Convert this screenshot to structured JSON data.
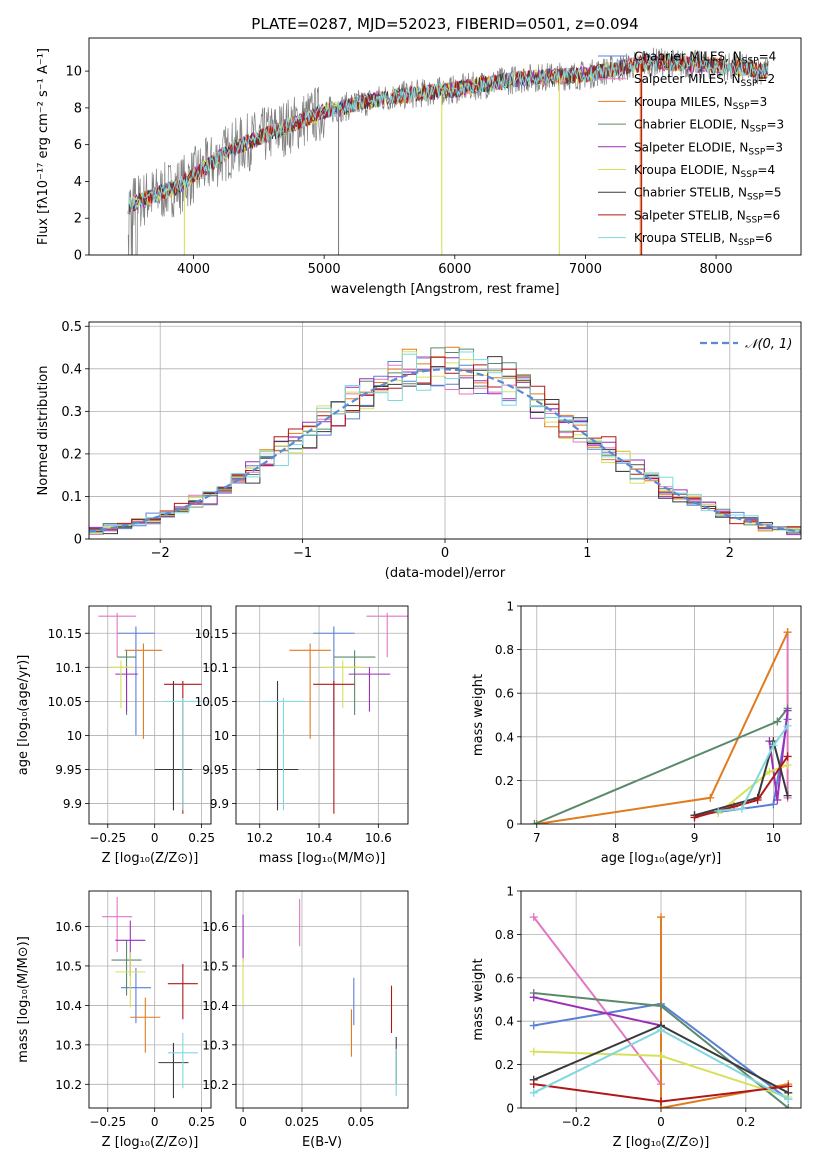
{
  "panels": {
    "spectrum": {
      "title": "PLATE=0287, MJD=52023, FIBERID=0501, z=0.094",
      "xlabel": "wavelength [Angstrom, rest frame]",
      "ylabel": "Flux [fλ10⁻¹⁷ erg cm⁻² s⁻¹ A⁻¹]",
      "xlim": [
        3200,
        8650
      ],
      "ylim": [
        0,
        11.8
      ],
      "xticks": [
        4000,
        5000,
        6000,
        7000,
        8000
      ],
      "yticks": [
        0,
        2,
        4,
        6,
        8,
        10
      ],
      "legend": [
        {
          "name": "Chabrier MILES, N_SSP=4",
          "color": "#5b7fd6"
        },
        {
          "name": "Salpeter MILES, N_SSP=2",
          "color": "#e377c2"
        },
        {
          "name": "Kroupa MILES, N_SSP=3",
          "color": "#e07b20"
        },
        {
          "name": "Chabrier ELODIE, N_SSP=3",
          "color": "#5a8a6a"
        },
        {
          "name": "Salpeter ELODIE, N_SSP=3",
          "color": "#9a2fb8"
        },
        {
          "name": "Kroupa ELODIE, N_SSP=4",
          "color": "#d8e05a"
        },
        {
          "name": "Chabrier STELIB, N_SSP=5",
          "color": "#3a3a3a"
        },
        {
          "name": "Salpeter STELIB, N_SSP=6",
          "color": "#b01818"
        },
        {
          "name": "Kroupa STELIB, N_SSP=6",
          "color": "#7fd8e0"
        }
      ]
    },
    "residuals": {
      "xlabel": "(data-model)/error",
      "ylabel": "Normed distribution",
      "xlim": [
        -2.5,
        2.5
      ],
      "ylim": [
        0,
        0.51
      ],
      "xticks": [
        -2,
        -1,
        0,
        1,
        2
      ],
      "yticks": [
        0.0,
        0.1,
        0.2,
        0.3,
        0.4,
        0.5
      ],
      "legend": "𝒩(0, 1)"
    },
    "age_Z": {
      "xlabel": "Z [log₁₀(Z/Z⊙)]",
      "ylabel": "age  [log₁₀(age/yr)]",
      "xticks": [
        -0.25,
        0.0,
        0.25
      ],
      "yticks": [
        9.9,
        9.95,
        10.0,
        10.05,
        10.1,
        10.15
      ]
    },
    "age_mass": {
      "xlabel": "mass [log₁₀(M/M⊙)]",
      "xticks": [
        10.2,
        10.4,
        10.6
      ],
      "yticks": [
        9.9,
        9.95,
        10.0,
        10.05,
        10.1,
        10.15
      ]
    },
    "weight_age": {
      "xlabel": "age  [log₁₀(age/yr)]",
      "ylabel": "mass weight",
      "xticks": [
        7,
        8,
        9,
        10
      ],
      "yticks": [
        0.0,
        0.2,
        0.4,
        0.6,
        0.8,
        1.0
      ]
    },
    "mass_Z": {
      "xlabel": "Z [log₁₀(Z/Z⊙)]",
      "ylabel": "mass [log₁₀(M/M⊙)]",
      "xticks": [
        -0.25,
        0.0,
        0.25
      ],
      "yticks": [
        10.2,
        10.3,
        10.4,
        10.5,
        10.6
      ]
    },
    "mass_EBV": {
      "xlabel": "E(B-V)",
      "xticks": [
        0.0,
        0.025,
        0.05
      ],
      "yticks": [
        10.2,
        10.3,
        10.4,
        10.5,
        10.6
      ]
    },
    "weight_Z": {
      "xlabel": "Z [log₁₀(Z/Z⊙)]",
      "ylabel": "mass weight",
      "xticks": [
        -0.2,
        0.0,
        0.2
      ],
      "yticks": [
        0.0,
        0.2,
        0.4,
        0.6,
        0.8,
        1.0
      ]
    }
  },
  "chart_data": [
    {
      "type": "line",
      "title": "PLATE=0287, MJD=52023, FIBERID=0501, z=0.094",
      "xlabel": "wavelength [Angstrom, rest frame]",
      "ylabel": "Flux",
      "x_range": [
        3500,
        8400
      ],
      "approx_flux_profile": {
        "x": [
          3500,
          3900,
          4300,
          5000,
          5500,
          6000,
          6500,
          7000,
          7500,
          8000,
          8400
        ],
        "y": [
          2.7,
          3.8,
          5.8,
          7.8,
          8.6,
          9.0,
          9.6,
          9.8,
          10.5,
          10.3,
          10.0
        ]
      },
      "series": [
        "Chabrier MILES, N_SSP=4",
        "Salpeter MILES, N_SSP=2",
        "Kroupa MILES, N_SSP=3",
        "Chabrier ELODIE, N_SSP=3",
        "Salpeter ELODIE, N_SSP=3",
        "Kroupa ELODIE, N_SSP=4",
        "Chabrier STELIB, N_SSP=5",
        "Salpeter STELIB, N_SSP=6",
        "Kroupa STELIB, N_SSP=6"
      ]
    },
    {
      "type": "line",
      "xlabel": "(data-model)/error",
      "ylabel": "Normed distribution",
      "reference": "N(0,1)",
      "hist_profile": {
        "x": [
          -2.5,
          -2.0,
          -1.5,
          -1.0,
          -0.5,
          0.0,
          0.5,
          1.0,
          1.5,
          2.0,
          2.5
        ],
        "y": [
          0.02,
          0.06,
          0.15,
          0.24,
          0.34,
          0.42,
          0.34,
          0.24,
          0.14,
          0.06,
          0.02
        ]
      }
    },
    {
      "type": "scatter",
      "xlabel": "Z",
      "ylabel": "age",
      "points": [
        {
          "series": "Chabrier MILES",
          "Z": -0.1,
          "age": 10.15,
          "Zerr": 0.1,
          "ageerr": [
            0.15,
            0.01
          ]
        },
        {
          "series": "Salpeter MILES",
          "Z": -0.2,
          "age": 10.175,
          "Zerr": 0.1,
          "ageerr": [
            0.06,
            0.005
          ]
        },
        {
          "series": "Kroupa MILES",
          "Z": -0.06,
          "age": 10.125,
          "Zerr": 0.1,
          "ageerr": [
            0.13,
            0.01
          ]
        },
        {
          "series": "Chabrier ELODIE",
          "Z": -0.15,
          "age": 10.115,
          "Zerr": 0.05,
          "ageerr": [
            0.085,
            0.01
          ]
        },
        {
          "series": "Salpeter ELODIE",
          "Z": -0.15,
          "age": 10.09,
          "Zerr": 0.06,
          "ageerr": [
            0.055,
            0.01
          ]
        },
        {
          "series": "Kroupa ELODIE",
          "Z": -0.18,
          "age": 10.1,
          "Zerr": 0.06,
          "ageerr": [
            0.06,
            0.01
          ]
        },
        {
          "series": "Chabrier STELIB",
          "Z": 0.1,
          "age": 9.95,
          "Zerr": 0.1,
          "ageerr": [
            0.06,
            0.13
          ]
        },
        {
          "series": "Salpeter STELIB",
          "Z": 0.15,
          "age": 10.075,
          "Zerr": 0.1,
          "ageerr": [
            0.19,
            0.005
          ]
        },
        {
          "series": "Kroupa STELIB",
          "Z": 0.15,
          "age": 10.05,
          "Zerr": 0.1,
          "ageerr": [
            0.16,
            0.005
          ]
        }
      ]
    },
    {
      "type": "scatter",
      "xlabel": "mass",
      "ylabel": "age",
      "points": [
        {
          "series": "Chabrier MILES",
          "mass": 10.45,
          "age": 10.15
        },
        {
          "series": "Salpeter MILES",
          "mass": 10.63,
          "age": 10.175
        },
        {
          "series": "Kroupa MILES",
          "mass": 10.37,
          "age": 10.125
        },
        {
          "series": "Chabrier ELODIE",
          "mass": 10.52,
          "age": 10.115
        },
        {
          "series": "Salpeter ELODIE",
          "mass": 10.57,
          "age": 10.09
        },
        {
          "series": "Kroupa ELODIE",
          "mass": 10.48,
          "age": 10.1
        },
        {
          "series": "Chabrier STELIB",
          "mass": 10.26,
          "age": 9.95
        },
        {
          "series": "Salpeter STELIB",
          "mass": 10.45,
          "age": 10.075
        },
        {
          "series": "Kroupa STELIB",
          "mass": 10.28,
          "age": 10.05
        }
      ]
    },
    {
      "type": "line",
      "xlabel": "age",
      "ylabel": "mass weight",
      "series": [
        {
          "name": "Chabrier MILES",
          "x": [
            9.0,
            10.0,
            10.18
          ],
          "y": [
            0.04,
            0.09,
            0.48
          ]
        },
        {
          "name": "Salpeter MILES",
          "x": [
            10.18,
            10.18
          ],
          "y": [
            0.88,
            0.12
          ]
        },
        {
          "name": "Kroupa MILES",
          "x": [
            7.0,
            9.2,
            10.18
          ],
          "y": [
            0.0,
            0.12,
            0.88
          ]
        },
        {
          "name": "Chabrier ELODIE",
          "x": [
            6.97,
            10.05,
            10.18
          ],
          "y": [
            0.0,
            0.47,
            0.53
          ]
        },
        {
          "name": "Salpeter ELODIE",
          "x": [
            9.95,
            10.05,
            10.18
          ],
          "y": [
            0.38,
            0.11,
            0.52
          ]
        },
        {
          "name": "Kroupa ELODIE",
          "x": [
            9.3,
            9.95,
            10.18
          ],
          "y": [
            0.05,
            0.24,
            0.27
          ]
        },
        {
          "name": "Chabrier STELIB",
          "x": [
            9.0,
            9.8,
            10.0,
            10.18
          ],
          "y": [
            0.04,
            0.12,
            0.38,
            0.13
          ]
        },
        {
          "name": "Salpeter STELIB",
          "x": [
            9.0,
            9.5,
            9.8,
            10.18
          ],
          "y": [
            0.03,
            0.08,
            0.11,
            0.31
          ]
        },
        {
          "name": "Kroupa STELIB",
          "x": [
            9.3,
            9.6,
            10.0,
            10.18
          ],
          "y": [
            0.06,
            0.07,
            0.36,
            0.45
          ]
        }
      ]
    },
    {
      "type": "scatter",
      "xlabel": "Z",
      "ylabel": "mass",
      "points": [
        {
          "series": "Chabrier MILES",
          "Z": -0.1,
          "mass": 10.445
        },
        {
          "series": "Salpeter MILES",
          "Z": -0.2,
          "mass": 10.625
        },
        {
          "series": "Kroupa MILES",
          "Z": -0.05,
          "mass": 10.37
        },
        {
          "series": "Chabrier ELODIE",
          "Z": -0.15,
          "mass": 10.515
        },
        {
          "series": "Salpeter ELODIE",
          "Z": -0.13,
          "mass": 10.565
        },
        {
          "series": "Kroupa ELODIE",
          "Z": -0.13,
          "mass": 10.485
        },
        {
          "series": "Chabrier STELIB",
          "Z": 0.1,
          "mass": 10.255
        },
        {
          "series": "Salpeter STELIB",
          "Z": 0.15,
          "mass": 10.455
        },
        {
          "series": "Kroupa STELIB",
          "Z": 0.15,
          "mass": 10.28
        }
      ]
    },
    {
      "type": "scatter",
      "xlabel": "E(B-V)",
      "ylabel": "mass",
      "points": [
        {
          "series": "Salpeter ELODIE",
          "EBV": 0.0,
          "mass": 10.58
        },
        {
          "series": "Kroupa ELODIE",
          "EBV": 0.0,
          "mass": 10.47
        },
        {
          "series": "Salpeter MILES",
          "EBV": 0.024,
          "mass": 10.62
        },
        {
          "series": "Kroupa MILES",
          "EBV": 0.046,
          "mass": 10.34
        },
        {
          "series": "Chabrier MILES",
          "EBV": 0.047,
          "mass": 10.42
        },
        {
          "series": "Salpeter STELIB",
          "EBV": 0.063,
          "mass": 10.4
        },
        {
          "series": "Chabrier STELIB",
          "EBV": 0.065,
          "mass": 10.27
        },
        {
          "series": "Kroupa STELIB",
          "EBV": 0.065,
          "mass": 10.24
        }
      ]
    },
    {
      "type": "line",
      "xlabel": "Z",
      "ylabel": "mass weight",
      "series": [
        {
          "name": "Chabrier MILES",
          "x": [
            -0.3,
            0.0,
            0.3
          ],
          "y": [
            0.38,
            0.48,
            0.04
          ]
        },
        {
          "name": "Salpeter MILES",
          "x": [
            -0.3,
            0.0
          ],
          "y": [
            0.88,
            0.11
          ]
        },
        {
          "name": "Kroupa MILES",
          "x": [
            0.0,
            0.0,
            0.3
          ],
          "y": [
            0.88,
            0.0,
            0.11
          ]
        },
        {
          "name": "Chabrier ELODIE",
          "x": [
            -0.3,
            0.0,
            0.3
          ],
          "y": [
            0.53,
            0.47,
            0.0
          ]
        },
        {
          "name": "Salpeter ELODIE",
          "x": [
            -0.3,
            0.0
          ],
          "y": [
            0.51,
            0.38
          ]
        },
        {
          "name": "Kroupa ELODIE",
          "x": [
            -0.3,
            0.0,
            0.3
          ],
          "y": [
            0.26,
            0.24,
            0.05
          ]
        },
        {
          "name": "Chabrier STELIB",
          "x": [
            -0.3,
            0.0,
            0.3
          ],
          "y": [
            0.13,
            0.38,
            0.07
          ]
        },
        {
          "name": "Salpeter STELIB",
          "x": [
            -0.3,
            0.0,
            0.3
          ],
          "y": [
            0.11,
            0.03,
            0.1
          ]
        },
        {
          "name": "Kroupa STELIB",
          "x": [
            -0.3,
            0.0,
            0.3
          ],
          "y": [
            0.07,
            0.36,
            0.04
          ]
        }
      ]
    }
  ]
}
